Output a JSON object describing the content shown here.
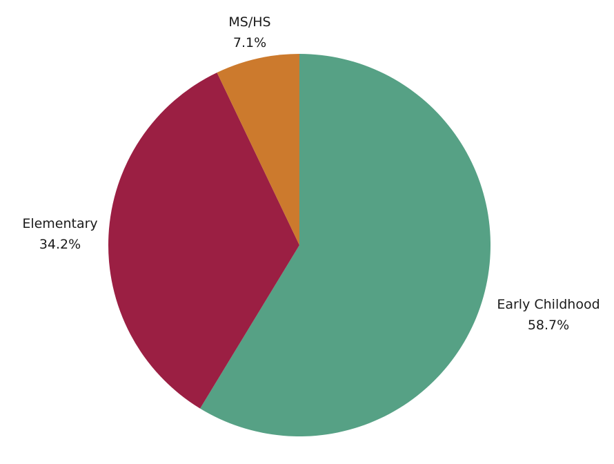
{
  "chart_data": {
    "type": "pie",
    "title": "",
    "start_angle_deg": 0,
    "direction": "clockwise",
    "slices": [
      {
        "label": "Early Childhood",
        "value": 58.7,
        "display": "58.7%",
        "color": "#56A185"
      },
      {
        "label": "Elementary",
        "value": 34.2,
        "display": "34.2%",
        "color": "#9B1F43"
      },
      {
        "label": "MS/HS",
        "value": 7.1,
        "display": "7.1%",
        "color": "#CC7A2D"
      }
    ],
    "legend": "none",
    "labels": "outside"
  }
}
